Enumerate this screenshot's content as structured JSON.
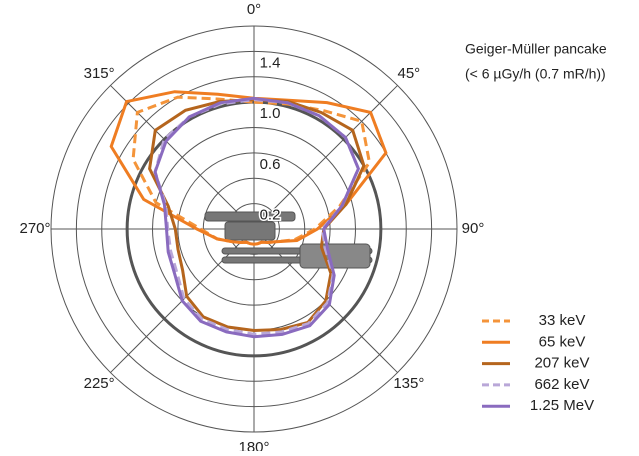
{
  "chart_data": {
    "type": "polar",
    "annotation": [
      "Geiger-Müller pancake",
      "(< 6 µGy/h (0.7 mR/h))"
    ],
    "theta": [
      0,
      15,
      30,
      45,
      60,
      75,
      90,
      105,
      120,
      135,
      150,
      165,
      180,
      195,
      210,
      225,
      240,
      255,
      270,
      285,
      300,
      315,
      330,
      345
    ],
    "thetaticks": [
      {
        "value": 0,
        "label": "0°"
      },
      {
        "value": 45,
        "label": "45°"
      },
      {
        "value": 90,
        "label": "90°"
      },
      {
        "value": 135,
        "label": "135°"
      },
      {
        "value": 180,
        "label": "180°"
      },
      {
        "value": 225,
        "label": "225°"
      },
      {
        "value": 270,
        "label": "270°"
      },
      {
        "value": 315,
        "label": "315°"
      }
    ],
    "rlim": [
      0,
      1.6
    ],
    "rticks": [
      0.2,
      0.6,
      {
        "value": 1,
        "label": "1.0"
      },
      1.4
    ],
    "rgrid": [
      0.2,
      0.4,
      0.6,
      0.8,
      1,
      1.2,
      1.4,
      1.6
    ],
    "reference_circle": 1,
    "series": [
      {
        "name": "33 keV",
        "color": "#f4943a",
        "dashed": true,
        "values": [
          1.0,
          1.02,
          1.08,
          1.2,
          1.05,
          0.7,
          0.48,
          0.33,
          0.2,
          0.15,
          0.12,
          0.12,
          0.12,
          0.12,
          0.12,
          0.15,
          0.2,
          0.3,
          0.42,
          0.8,
          1.1,
          1.3,
          1.2,
          1.06
        ]
      },
      {
        "name": "65 keV",
        "color": "#ef7d22",
        "dashed": false,
        "values": [
          1.03,
          1.05,
          1.15,
          1.3,
          1.2,
          0.75,
          0.5,
          0.35,
          0.2,
          0.15,
          0.12,
          0.12,
          0.12,
          0.12,
          0.12,
          0.15,
          0.2,
          0.3,
          0.45,
          0.9,
          1.3,
          1.42,
          1.25,
          1.1
        ]
      },
      {
        "name": "207 keV",
        "color": "#b5651d",
        "dashed": false,
        "values": [
          1.02,
          1.04,
          1.06,
          1.1,
          1.0,
          0.75,
          0.55,
          0.55,
          0.7,
          0.8,
          0.85,
          0.82,
          0.8,
          0.8,
          0.8,
          0.75,
          0.65,
          0.62,
          0.62,
          0.7,
          0.95,
          1.1,
          1.08,
          1.04
        ]
      },
      {
        "name": "662 keV",
        "color": "#b9a7d8",
        "dashed": true,
        "values": [
          1.02,
          1.03,
          1.03,
          1.02,
          0.95,
          0.72,
          0.54,
          0.58,
          0.72,
          0.82,
          0.86,
          0.84,
          0.83,
          0.82,
          0.82,
          0.78,
          0.7,
          0.68,
          0.68,
          0.72,
          0.9,
          1.0,
          1.02,
          1.02
        ]
      },
      {
        "name": "1.25 MeV",
        "color": "#8a6bbf",
        "dashed": false,
        "values": [
          1.03,
          1.03,
          1.03,
          1.02,
          0.95,
          0.72,
          0.55,
          0.6,
          0.73,
          0.84,
          0.88,
          0.86,
          0.85,
          0.84,
          0.84,
          0.8,
          0.72,
          0.7,
          0.69,
          0.73,
          0.9,
          0.98,
          1.02,
          1.03
        ]
      }
    ]
  }
}
